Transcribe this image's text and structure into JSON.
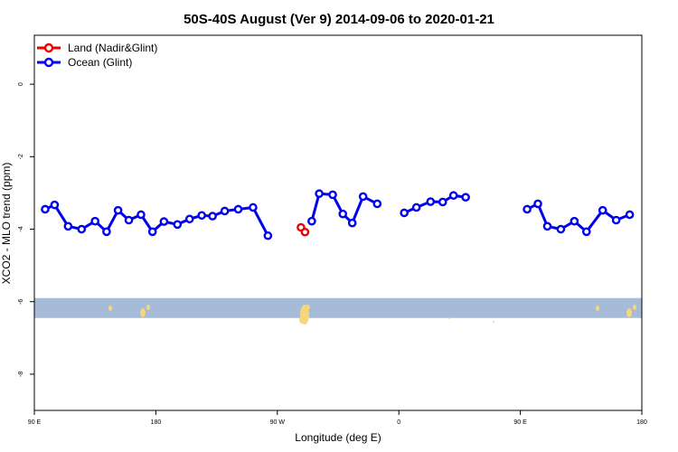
{
  "chart_data": {
    "type": "line",
    "title": "50S-40S August (Ver 9)   2014-09-06 to 2020-01-21",
    "xlabel": "Longitude (deg E)",
    "ylabel": "XCO2 - MLO trend (ppm)",
    "xlim": [
      90,
      540
    ],
    "ylim": [
      -9.0,
      1.35
    ],
    "x_ticks": [
      {
        "value": 90,
        "label": "90 E"
      },
      {
        "value": 180,
        "label": "180"
      },
      {
        "value": 270,
        "label": "90 W"
      },
      {
        "value": 360,
        "label": "0"
      },
      {
        "value": 450,
        "label": "90 E"
      },
      {
        "value": 540,
        "label": "180"
      }
    ],
    "y_ticks": [
      {
        "value": 0,
        "label": "0"
      },
      {
        "value": -2,
        "label": "-2"
      },
      {
        "value": -4,
        "label": "-4"
      },
      {
        "value": -6,
        "label": "-6"
      },
      {
        "value": -8,
        "label": "-8"
      }
    ],
    "grid": false,
    "legend_position": "top-left",
    "series": [
      {
        "name": "Land (Nadir&Glint)",
        "color": "#ee0000",
        "segments": [
          [
            [
              287.5,
              -3.95
            ],
            [
              290.5,
              -4.08
            ]
          ]
        ]
      },
      {
        "name": "Ocean (Glint)",
        "color": "#0000ee",
        "segments": [
          [
            [
              98,
              -3.45
            ],
            [
              105,
              -3.33
            ],
            [
              115,
              -3.92
            ],
            [
              125,
              -4.0
            ],
            [
              135,
              -3.78
            ],
            [
              143.5,
              -4.07
            ],
            [
              152,
              -3.48
            ],
            [
              160,
              -3.75
            ],
            [
              169,
              -3.6
            ],
            [
              177.5,
              -4.07
            ],
            [
              186,
              -3.79
            ],
            [
              196,
              -3.87
            ],
            [
              205,
              -3.72
            ],
            [
              214,
              -3.62
            ],
            [
              222,
              -3.64
            ],
            [
              231,
              -3.5
            ],
            [
              241,
              -3.45
            ],
            [
              252,
              -3.4
            ],
            [
              263,
              -4.18
            ]
          ],
          [
            [
              295.5,
              -3.78
            ],
            [
              301,
              -3.02
            ],
            [
              311,
              -3.05
            ],
            [
              318.5,
              -3.58
            ],
            [
              325.5,
              -3.83
            ],
            [
              333.5,
              -3.1
            ],
            [
              344,
              -3.3
            ]
          ],
          [
            [
              364,
              -3.55
            ],
            [
              373,
              -3.4
            ],
            [
              383.5,
              -3.24
            ],
            [
              392.5,
              -3.25
            ],
            [
              400.5,
              -3.07
            ],
            [
              409.5,
              -3.12
            ]
          ],
          [
            [
              455,
              -3.45
            ],
            [
              463,
              -3.3
            ],
            [
              470,
              -3.92
            ],
            [
              480,
              -4.0
            ],
            [
              490,
              -3.78
            ],
            [
              499,
              -4.07
            ],
            [
              511,
              -3.48
            ],
            [
              521,
              -3.75
            ],
            [
              531,
              -3.6
            ]
          ]
        ]
      }
    ],
    "map_strip": {
      "ocean_color": "#a5bbd8",
      "land_color": "#f5d77a",
      "y_range": [
        -6.45,
        -5.9
      ]
    }
  }
}
